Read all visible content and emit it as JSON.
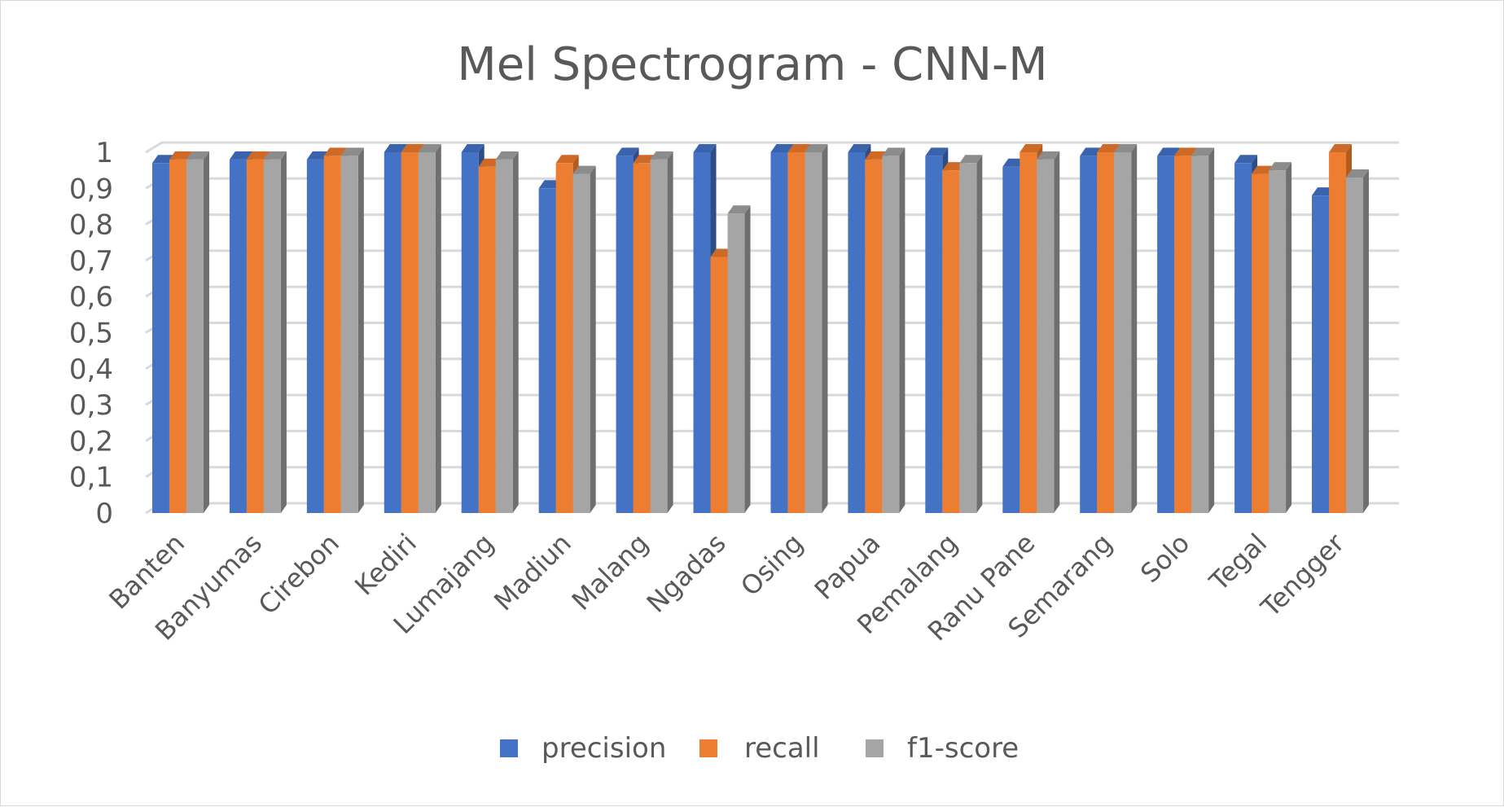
{
  "chart_data": {
    "type": "bar",
    "title": "Mel Spectrogram - CNN-M",
    "xlabel": "",
    "ylabel": "",
    "ylim": [
      0,
      1
    ],
    "yticks": [
      "0",
      "0,1",
      "0,2",
      "0,3",
      "0,4",
      "0,5",
      "0,6",
      "0,7",
      "0,8",
      "0,9",
      "1"
    ],
    "grid": true,
    "legend_position": "bottom",
    "categories": [
      "Banten",
      "Banyumas",
      "Cirebon",
      "Kediri",
      "Lumajang",
      "Madiun",
      "Malang",
      "Ngadas",
      "Osing",
      "Papua",
      "Pemalang",
      "Ranu Pane",
      "Semarang",
      "Solo",
      "Tegal",
      "Tengger"
    ],
    "series": [
      {
        "name": "precision",
        "color": "#4472c4",
        "side": "#2e4d86",
        "top": "#3a63ad",
        "values": [
          0.97,
          0.98,
          0.98,
          1.0,
          1.0,
          0.9,
          0.99,
          1.0,
          1.0,
          1.0,
          0.99,
          0.96,
          0.99,
          0.99,
          0.97,
          0.88
        ]
      },
      {
        "name": "recall",
        "color": "#ed7d31",
        "side": "#b35a1f",
        "top": "#cf6a26",
        "values": [
          0.98,
          0.98,
          0.99,
          1.0,
          0.96,
          0.97,
          0.97,
          0.71,
          1.0,
          0.98,
          0.95,
          1.0,
          1.0,
          0.99,
          0.94,
          1.0
        ]
      },
      {
        "name": "f1-score",
        "color": "#a5a5a5",
        "side": "#6f6f6f",
        "top": "#8c8c8c",
        "values": [
          0.98,
          0.98,
          0.99,
          1.0,
          0.98,
          0.94,
          0.98,
          0.83,
          1.0,
          0.99,
          0.97,
          0.98,
          1.0,
          0.99,
          0.95,
          0.93
        ]
      }
    ]
  }
}
